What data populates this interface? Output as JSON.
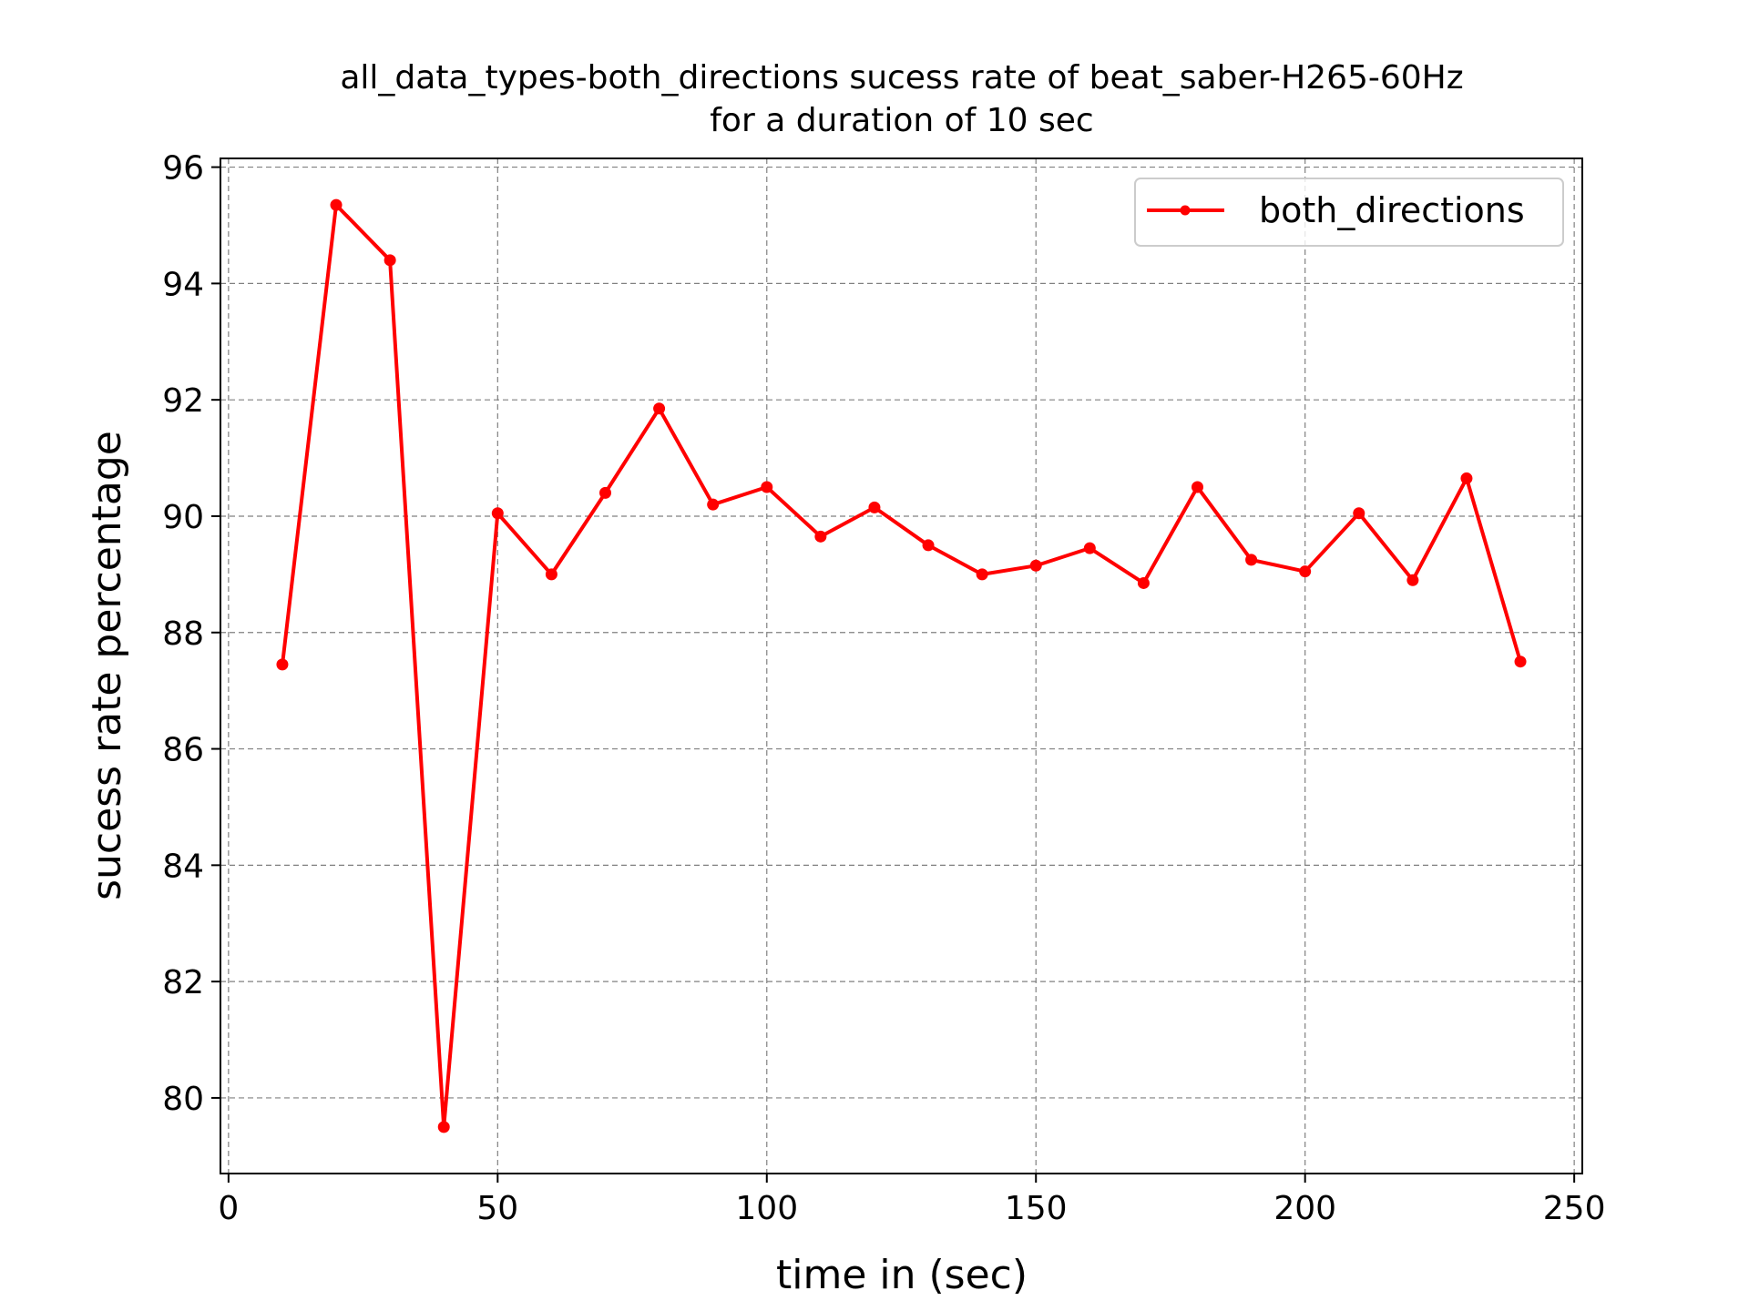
{
  "chart_data": {
    "type": "line",
    "title": "all_data_types-both_directions sucess rate of beat_saber-H265-60Hz",
    "subtitle": "for a duration of 10 sec",
    "xlabel": "time in (sec)",
    "ylabel": "sucess rate percentage",
    "xlim": [
      -1.5,
      251.5
    ],
    "ylim": [
      78.7,
      96.15
    ],
    "xticks": [
      0,
      50,
      100,
      150,
      200,
      250
    ],
    "yticks": [
      80,
      82,
      84,
      86,
      88,
      90,
      92,
      94,
      96
    ],
    "grid": true,
    "legend_position": "top-right",
    "series": [
      {
        "name": "both_directions",
        "color": "#ff0000",
        "x": [
          10,
          20,
          30,
          40,
          50,
          60,
          70,
          80,
          90,
          100,
          110,
          120,
          130,
          140,
          150,
          160,
          170,
          180,
          190,
          200,
          210,
          220,
          230,
          240
        ],
        "y": [
          87.45,
          95.35,
          94.4,
          79.5,
          90.05,
          89.0,
          90.4,
          91.85,
          90.2,
          90.5,
          89.65,
          90.15,
          89.5,
          89.0,
          89.15,
          89.45,
          88.85,
          90.5,
          89.25,
          89.05,
          90.05,
          88.9,
          90.65,
          87.5
        ]
      }
    ]
  }
}
